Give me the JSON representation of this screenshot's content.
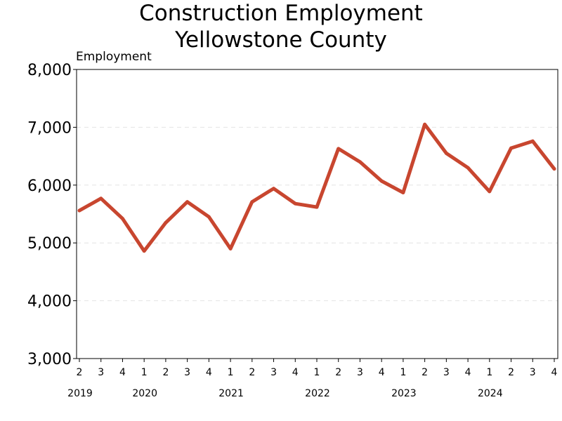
{
  "chart_data": {
    "type": "line",
    "title": [
      "Construction Employment",
      "Yellowstone County"
    ],
    "ylabel": "Employment",
    "xlabel": "",
    "ylim": [
      3000,
      8000
    ],
    "yticks": [
      3000,
      4000,
      5000,
      6000,
      7000,
      8000
    ],
    "ytick_labels": [
      "3,000",
      "4,000",
      "5,000",
      "6,000",
      "7,000",
      "8,000"
    ],
    "grid": "horizontal-dashed",
    "quarter_labels": [
      "2",
      "3",
      "4",
      "1",
      "2",
      "3",
      "4",
      "1",
      "2",
      "3",
      "4",
      "1",
      "2",
      "3",
      "4",
      "1",
      "2",
      "3",
      "4",
      "1",
      "2",
      "3",
      "4"
    ],
    "year_labels": [
      {
        "label": "2019",
        "index": 0
      },
      {
        "label": "2020",
        "index": 3
      },
      {
        "label": "2021",
        "index": 7
      },
      {
        "label": "2022",
        "index": 11
      },
      {
        "label": "2023",
        "index": 15
      },
      {
        "label": "2024",
        "index": 19
      }
    ],
    "series": [
      {
        "color": "#C8462F",
        "values": [
          5560,
          5770,
          5420,
          4860,
          5350,
          5710,
          5450,
          4900,
          5710,
          5940,
          5680,
          5620,
          6630,
          6400,
          6070,
          5870,
          7050,
          6550,
          6300,
          5890,
          6640,
          6760,
          6280
        ]
      }
    ]
  }
}
